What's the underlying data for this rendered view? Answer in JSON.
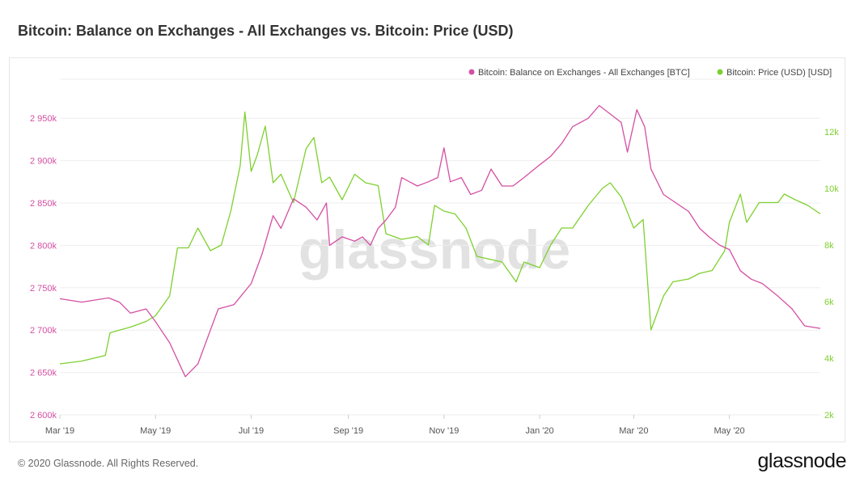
{
  "title": "Bitcoin: Balance on Exchanges - All Exchanges vs. Bitcoin: Price (USD)",
  "footer": "© 2020 Glassnode. All Rights Reserved.",
  "logo": "glassnode",
  "watermark": "glassnode",
  "chart_data": {
    "type": "line",
    "title": "Bitcoin: Balance on Exchanges - All Exchanges vs. Bitcoin: Price (USD)",
    "grid": true,
    "legend_position": "top-right",
    "x_ticks": [
      "Mar '19",
      "May '19",
      "Jul '19",
      "Sep '19",
      "Nov '19",
      "Jan '20",
      "Mar '20",
      "May '20"
    ],
    "x_tick_dates": [
      "2019-03-01",
      "2019-05-01",
      "2019-07-01",
      "2019-09-01",
      "2019-11-01",
      "2020-01-01",
      "2020-03-01",
      "2020-05-01"
    ],
    "xlim": [
      "2019-03-01",
      "2020-06-28"
    ],
    "y_left": {
      "ylim": [
        2600,
        2985
      ],
      "unit": "k BTC",
      "ticks": [
        "2 600k",
        "2 650k",
        "2 700k",
        "2 750k",
        "2 800k",
        "2 850k",
        "2 900k",
        "2 950k"
      ],
      "tick_values": [
        2600,
        2650,
        2700,
        2750,
        2800,
        2850,
        2900,
        2950
      ],
      "color": "#d44fa3"
    },
    "y_right": {
      "ylim": [
        2,
        12.9
      ],
      "unit": "k USD",
      "ticks": [
        "2k",
        "4k",
        "6k",
        "8k",
        "10k",
        "12k"
      ],
      "tick_values": [
        2,
        4,
        6,
        8,
        10,
        12
      ],
      "color": "#7ed02f"
    },
    "series": [
      {
        "name": "Bitcoin: Balance on Exchanges - All Exchanges [BTC]",
        "axis": "left",
        "color": "#d44fa3",
        "x": [
          "2019-03-01",
          "2019-03-15",
          "2019-04-01",
          "2019-04-08",
          "2019-04-15",
          "2019-04-25",
          "2019-05-01",
          "2019-05-10",
          "2019-05-20",
          "2019-05-28",
          "2019-06-05",
          "2019-06-10",
          "2019-06-20",
          "2019-07-01",
          "2019-07-08",
          "2019-07-15",
          "2019-07-20",
          "2019-07-28",
          "2019-08-05",
          "2019-08-12",
          "2019-08-18",
          "2019-08-20",
          "2019-08-28",
          "2019-09-05",
          "2019-09-10",
          "2019-09-15",
          "2019-09-20",
          "2019-09-25",
          "2019-10-01",
          "2019-10-05",
          "2019-10-15",
          "2019-10-22",
          "2019-10-28",
          "2019-11-01",
          "2019-11-05",
          "2019-11-12",
          "2019-11-18",
          "2019-11-25",
          "2019-12-01",
          "2019-12-08",
          "2019-12-15",
          "2019-12-22",
          "2020-01-01",
          "2020-01-08",
          "2020-01-15",
          "2020-01-22",
          "2020-02-01",
          "2020-02-08",
          "2020-02-15",
          "2020-02-22",
          "2020-02-26",
          "2020-03-03",
          "2020-03-08",
          "2020-03-12",
          "2020-03-20",
          "2020-03-28",
          "2020-04-05",
          "2020-04-12",
          "2020-04-18",
          "2020-04-25",
          "2020-05-01",
          "2020-05-08",
          "2020-05-15",
          "2020-05-22",
          "2020-06-01",
          "2020-06-10",
          "2020-06-18",
          "2020-06-28"
        ],
        "values": [
          2737,
          2733,
          2738,
          2733,
          2720,
          2725,
          2710,
          2685,
          2645,
          2660,
          2700,
          2725,
          2730,
          2755,
          2790,
          2835,
          2820,
          2855,
          2845,
          2830,
          2850,
          2800,
          2810,
          2805,
          2810,
          2800,
          2820,
          2830,
          2845,
          2880,
          2870,
          2875,
          2880,
          2915,
          2875,
          2880,
          2860,
          2865,
          2890,
          2870,
          2870,
          2880,
          2895,
          2905,
          2920,
          2940,
          2950,
          2965,
          2955,
          2945,
          2910,
          2960,
          2940,
          2890,
          2860,
          2850,
          2840,
          2820,
          2810,
          2800,
          2795,
          2770,
          2760,
          2755,
          2740,
          2725,
          2705,
          2702
        ]
      },
      {
        "name": "Bitcoin: Price (USD) [USD]",
        "axis": "right",
        "color": "#7ed02f",
        "x": [
          "2019-03-01",
          "2019-03-15",
          "2019-03-30",
          "2019-04-02",
          "2019-04-15",
          "2019-04-25",
          "2019-05-01",
          "2019-05-10",
          "2019-05-15",
          "2019-05-22",
          "2019-05-28",
          "2019-06-05",
          "2019-06-12",
          "2019-06-18",
          "2019-06-24",
          "2019-06-27",
          "2019-07-01",
          "2019-07-05",
          "2019-07-10",
          "2019-07-15",
          "2019-07-20",
          "2019-07-28",
          "2019-08-05",
          "2019-08-10",
          "2019-08-15",
          "2019-08-20",
          "2019-08-28",
          "2019-09-05",
          "2019-09-12",
          "2019-09-20",
          "2019-09-25",
          "2019-10-05",
          "2019-10-15",
          "2019-10-22",
          "2019-10-26",
          "2019-11-01",
          "2019-11-08",
          "2019-11-15",
          "2019-11-22",
          "2019-11-30",
          "2019-12-08",
          "2019-12-17",
          "2019-12-22",
          "2020-01-01",
          "2020-01-08",
          "2020-01-15",
          "2020-01-22",
          "2020-02-01",
          "2020-02-10",
          "2020-02-15",
          "2020-02-22",
          "2020-03-01",
          "2020-03-07",
          "2020-03-12",
          "2020-03-20",
          "2020-03-26",
          "2020-04-05",
          "2020-04-12",
          "2020-04-20",
          "2020-04-28",
          "2020-05-01",
          "2020-05-08",
          "2020-05-12",
          "2020-05-20",
          "2020-06-01",
          "2020-06-05",
          "2020-06-12",
          "2020-06-20",
          "2020-06-28"
        ],
        "values": [
          3.8,
          3.9,
          4.1,
          4.9,
          5.1,
          5.3,
          5.5,
          6.2,
          7.9,
          7.9,
          8.6,
          7.8,
          8.0,
          9.2,
          10.8,
          12.7,
          10.6,
          11.2,
          12.2,
          10.2,
          10.5,
          9.5,
          11.4,
          11.8,
          10.2,
          10.4,
          9.6,
          10.5,
          10.2,
          10.1,
          8.4,
          8.2,
          8.3,
          8.0,
          9.4,
          9.2,
          9.1,
          8.6,
          7.6,
          7.5,
          7.4,
          6.7,
          7.4,
          7.2,
          8.0,
          8.6,
          8.6,
          9.4,
          10.0,
          10.2,
          9.7,
          8.6,
          8.9,
          5.0,
          6.2,
          6.7,
          6.8,
          7.0,
          7.1,
          7.8,
          8.8,
          9.8,
          8.8,
          9.5,
          9.5,
          9.8,
          9.6,
          9.4,
          9.1
        ]
      }
    ]
  }
}
